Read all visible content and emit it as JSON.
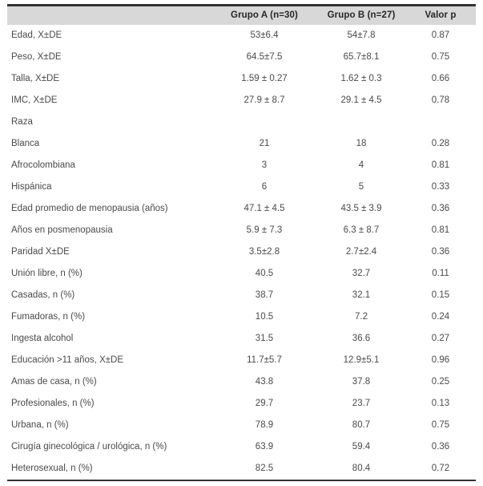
{
  "colors": {
    "header_bg": "#d8d8d8",
    "rule": "#333333",
    "body_text": "#4a4a4a",
    "header_text": "#262626"
  },
  "table": {
    "columns": [
      "",
      "Grupo A (n=30)",
      "Grupo B (n=27)",
      "Valor p"
    ],
    "rows": [
      {
        "label": "Edad, X±DE",
        "a": "53±6.4",
        "b": "54±7.8",
        "p": "0.87"
      },
      {
        "label": "Peso, X±DE",
        "a": "64.5±7.5",
        "b": "65.7±8.1",
        "p": "0.75"
      },
      {
        "label": "Talla, X±DE",
        "a": "1.59 ± 0.27",
        "b": "1.62 ± 0.3",
        "p": "0.66"
      },
      {
        "label": "IMC, X±DE",
        "a": "27.9 ± 8.7",
        "b": "29.1 ± 4.5",
        "p": "0.78"
      },
      {
        "label": "Raza",
        "a": "",
        "b": "",
        "p": ""
      },
      {
        "label": "Blanca",
        "a": "21",
        "b": "18",
        "p": "0.28"
      },
      {
        "label": "Afrocolombiana",
        "a": "3",
        "b": "4",
        "p": "0.81"
      },
      {
        "label": "Hispánica",
        "a": "6",
        "b": "5",
        "p": "0.33"
      },
      {
        "label": "Edad promedio de menopausia (años)",
        "a": "47.1 ± 4.5",
        "b": "43.5 ± 3.9",
        "p": "0.36"
      },
      {
        "label": "Años en posmenopausia",
        "a": "5.9 ± 7.3",
        "b": "6.3 ± 8.7",
        "p": "0.81"
      },
      {
        "label": "Paridad X±DE",
        "a": "3.5±2.8",
        "b": "2.7±2.4",
        "p": "0.36"
      },
      {
        "label": "Unión libre, n (%)",
        "a": "40.5",
        "b": "32.7",
        "p": "0.11"
      },
      {
        "label": "Casadas, n (%)",
        "a": "38.7",
        "b": "32.1",
        "p": "0.15"
      },
      {
        "label": "Fumadoras, n (%)",
        "a": "10.5",
        "b": "7.2",
        "p": "0.24"
      },
      {
        "label": "Ingesta alcohol",
        "a": "31.5",
        "b": "36.6",
        "p": "0.27"
      },
      {
        "label": "Educación >11 años, X±DE",
        "a": "11.7±5.7",
        "b": "12.9±5.1",
        "p": "0.96"
      },
      {
        "label": "Amas de casa, n (%)",
        "a": "43.8",
        "b": "37.8",
        "p": "0.25"
      },
      {
        "label": "Profesionales, n (%)",
        "a": "29.7",
        "b": "23.7",
        "p": "0.13"
      },
      {
        "label": "Urbana, n (%)",
        "a": "78.9",
        "b": "80.7",
        "p": "0.75"
      },
      {
        "label": "Cirugía ginecológica / urológica, n (%)",
        "a": "63.9",
        "b": "59.4",
        "p": "0.36"
      },
      {
        "label": "Heterosexual, n (%)",
        "a": "82.5",
        "b": "80.4",
        "p": "0.72"
      }
    ]
  }
}
